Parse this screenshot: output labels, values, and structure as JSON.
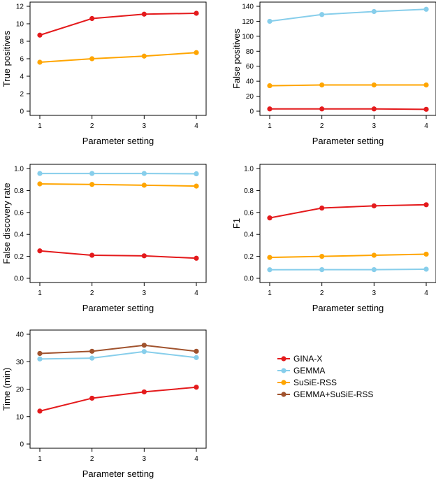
{
  "legend": [
    {
      "name": "GINA-X",
      "color": "#e41a1c"
    },
    {
      "name": "GEMMA",
      "color": "#87ceeb"
    },
    {
      "name": "SuSiE-RSS",
      "color": "#ffa500"
    },
    {
      "name": "GEMMA+SuSiE-RSS",
      "color": "#a0522d"
    }
  ],
  "chart_data": [
    {
      "type": "line",
      "xlabel": "Parameter setting",
      "ylabel": "True positives",
      "x": [
        1,
        2,
        3,
        4
      ],
      "xticks": [
        "1",
        "2",
        "3",
        "4"
      ],
      "ylim": [
        0,
        12
      ],
      "yticks": [
        "0",
        "2",
        "4",
        "6",
        "8",
        "10",
        "12"
      ],
      "series": [
        {
          "name": "GINA-X",
          "color": "#e41a1c",
          "values": [
            8.7,
            10.6,
            11.1,
            11.2
          ]
        },
        {
          "name": "SuSiE-RSS",
          "color": "#ffa500",
          "values": [
            5.6,
            6.0,
            6.3,
            6.7
          ]
        }
      ]
    },
    {
      "type": "line",
      "xlabel": "Parameter setting",
      "ylabel": "False positives",
      "x": [
        1,
        2,
        3,
        4
      ],
      "xticks": [
        "1",
        "2",
        "3",
        "4"
      ],
      "ylim": [
        0,
        140
      ],
      "yticks": [
        "0",
        "20",
        "40",
        "60",
        "80",
        "100",
        "120",
        "140"
      ],
      "series": [
        {
          "name": "GEMMA",
          "color": "#87ceeb",
          "values": [
            120,
            129,
            133,
            136
          ]
        },
        {
          "name": "SuSiE-RSS",
          "color": "#ffa500",
          "values": [
            34,
            35,
            35,
            35
          ]
        },
        {
          "name": "GINA-X",
          "color": "#e41a1c",
          "values": [
            3,
            3,
            3,
            2.5
          ]
        }
      ]
    },
    {
      "type": "line",
      "xlabel": "Parameter setting",
      "ylabel": "False discovery rate",
      "x": [
        1,
        2,
        3,
        4
      ],
      "xticks": [
        "1",
        "2",
        "3",
        "4"
      ],
      "ylim": [
        0,
        1.0
      ],
      "yticks": [
        "0.0",
        "0.2",
        "0.4",
        "0.6",
        "0.8",
        "1.0"
      ],
      "series": [
        {
          "name": "GEMMA",
          "color": "#87ceeb",
          "values": [
            0.955,
            0.955,
            0.955,
            0.952
          ]
        },
        {
          "name": "SuSiE-RSS",
          "color": "#ffa500",
          "values": [
            0.86,
            0.855,
            0.848,
            0.84
          ]
        },
        {
          "name": "GINA-X",
          "color": "#e41a1c",
          "values": [
            0.25,
            0.21,
            0.205,
            0.183
          ]
        }
      ]
    },
    {
      "type": "line",
      "xlabel": "Parameter setting",
      "ylabel": "F1",
      "x": [
        1,
        2,
        3,
        4
      ],
      "xticks": [
        "1",
        "2",
        "3",
        "4"
      ],
      "ylim": [
        0,
        1.0
      ],
      "yticks": [
        "0.0",
        "0.2",
        "0.4",
        "0.6",
        "0.8",
        "1.0"
      ],
      "series": [
        {
          "name": "GINA-X",
          "color": "#e41a1c",
          "values": [
            0.55,
            0.64,
            0.66,
            0.67
          ]
        },
        {
          "name": "SuSiE-RSS",
          "color": "#ffa500",
          "values": [
            0.19,
            0.2,
            0.21,
            0.22
          ]
        },
        {
          "name": "GEMMA",
          "color": "#87ceeb",
          "values": [
            0.078,
            0.079,
            0.079,
            0.083
          ]
        }
      ]
    },
    {
      "type": "line",
      "xlabel": "Parameter setting",
      "ylabel": "Time (min)",
      "x": [
        1,
        2,
        3,
        4
      ],
      "xticks": [
        "1",
        "2",
        "3",
        "4"
      ],
      "ylim": [
        0,
        40
      ],
      "yticks": [
        "0",
        "10",
        "20",
        "30",
        "40"
      ],
      "series": [
        {
          "name": "GEMMA+SuSiE-RSS",
          "color": "#a0522d",
          "values": [
            33,
            33.8,
            36,
            33.8
          ]
        },
        {
          "name": "GEMMA",
          "color": "#87ceeb",
          "values": [
            31,
            31.3,
            33.7,
            31.5
          ]
        },
        {
          "name": "GINA-X",
          "color": "#e41a1c",
          "values": [
            12,
            16.7,
            19,
            20.7
          ]
        }
      ]
    }
  ]
}
